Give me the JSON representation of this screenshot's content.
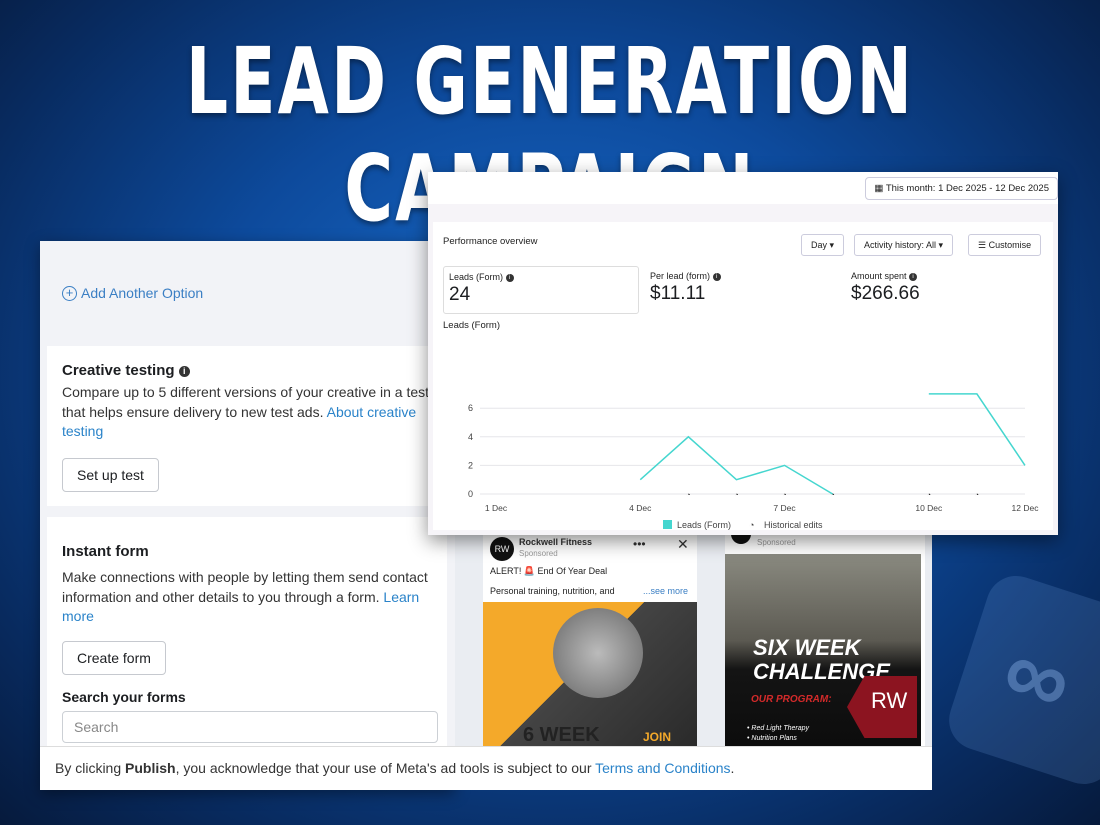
{
  "headline": "LEAD GENERATION CAMPAIGN",
  "left_panel": {
    "add_option": "Add Another Option",
    "creative_testing": {
      "title": "Creative testing",
      "description": "Compare up to 5 different versions of your creative in a test that helps ensure delivery to new test ads.",
      "link": "About creative testing",
      "button": "Set up test"
    },
    "instant_form": {
      "title": "Instant form",
      "description": "Make connections with people by letting them send contact information and other details to you through a form.",
      "link": "Learn more",
      "button": "Create form",
      "search_label": "Search your forms",
      "search_placeholder": "Search"
    }
  },
  "footer": {
    "prefix": "By clicking ",
    "bold": "Publish",
    "middle": ", you acknowledge that your use of Meta's ad tools is subject to our ",
    "link": "Terms and Conditions",
    "suffix": "."
  },
  "ads": [
    {
      "page": "Rockwell Fitness",
      "sponsored": "Sponsored",
      "headline": "ALERT! 🚨 End Of Year Deal",
      "body": "Personal training, nutrition, and",
      "see_more": "...see more",
      "image_text_1": "6 WEEK",
      "image_text_2": "JOIN NOW"
    },
    {
      "sponsored": "Sponsored",
      "image_title_1": "SIX WEEK",
      "image_title_2": "CHALLENGE",
      "program": "OUR PROGRAM:",
      "bullets": [
        "Red Light Therapy",
        "Nutrition Plans"
      ],
      "logo": "RW"
    }
  ],
  "performance": {
    "date_range": "This month: 1 Dec 2025 - 12 Dec 2025",
    "title": "Performance overview",
    "controls": {
      "day": "Day",
      "activity": "Activity history: All",
      "customise": "Customise"
    },
    "metrics": [
      {
        "label": "Leads (Form)",
        "value": "24"
      },
      {
        "label": "Per lead (form)",
        "value": "$11.11"
      },
      {
        "label": "Amount spent",
        "value": "$266.66"
      }
    ],
    "chart_label": "Leads (Form)"
  },
  "chart_data": {
    "type": "line",
    "ylabel": "Leads (Form)",
    "x": [
      "1 Dec",
      "2 Dec",
      "3 Dec",
      "4 Dec",
      "5 Dec",
      "6 Dec",
      "7 Dec",
      "8 Dec",
      "9 Dec",
      "10 Dec",
      "11 Dec",
      "12 Dec"
    ],
    "x_tick_labels": [
      "1 Dec",
      "4 Dec",
      "7 Dec",
      "10 Dec",
      "12 Dec"
    ],
    "series": [
      {
        "name": "Leads (Form)",
        "color": "#45d6cf",
        "values": [
          null,
          null,
          null,
          1,
          4,
          1,
          2,
          0,
          null,
          7,
          7,
          2
        ]
      }
    ],
    "historical_edits": [
      "5 Dec",
      "6 Dec",
      "7 Dec",
      "8 Dec",
      "10 Dec",
      "11 Dec"
    ],
    "y_ticks": [
      0,
      2,
      4,
      6
    ],
    "ylim": [
      0,
      7
    ],
    "grid": true,
    "legend": [
      "Leads (Form)",
      "Historical edits"
    ],
    "legend_position": "bottom"
  }
}
